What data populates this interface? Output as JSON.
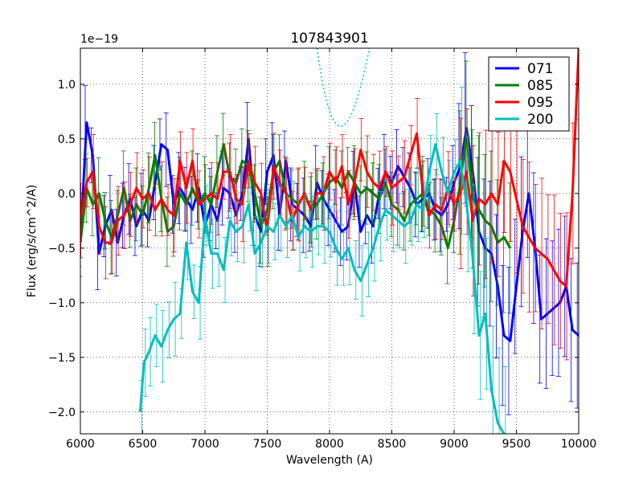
{
  "chart_data": {
    "type": "line",
    "title": "107843901",
    "xlabel": "Wavelength (A)",
    "ylabel": "Flux (erg/s/cm^2/A)",
    "y_offset_label": "1e−19",
    "xlim": [
      6000,
      10000
    ],
    "ylim": [
      -2.2,
      1.33
    ],
    "x_ticks": [
      6000,
      6500,
      7000,
      7500,
      8000,
      8500,
      9000,
      9500,
      10000
    ],
    "x_tick_labels": [
      "6000",
      "6500",
      "7000",
      "7500",
      "8000",
      "8500",
      "9000",
      "9500",
      "10000"
    ],
    "y_ticks": [
      -2.0,
      -1.5,
      -1.0,
      -0.5,
      0.0,
      0.5,
      1.0
    ],
    "y_tick_labels": [
      "−2.0",
      "−1.5",
      "−1.0",
      "−0.5",
      "0.0",
      "0.5",
      "1.0"
    ],
    "grid": true,
    "legend_position": "top-right",
    "series": [
      {
        "name": "071",
        "color": "#0000ff",
        "x": [
          6000,
          6050,
          6100,
          6150,
          6200,
          6250,
          6300,
          6350,
          6400,
          6450,
          6500,
          6550,
          6600,
          6650,
          6700,
          6750,
          6800,
          6850,
          6900,
          6950,
          7000,
          7050,
          7100,
          7150,
          7200,
          7250,
          7300,
          7350,
          7400,
          7450,
          7500,
          7550,
          7600,
          7650,
          7700,
          7750,
          7800,
          7850,
          7900,
          7950,
          8000,
          8050,
          8100,
          8150,
          8200,
          8250,
          8300,
          8350,
          8400,
          8450,
          8500,
          8550,
          8600,
          8650,
          8700,
          8750,
          8800,
          8850,
          8900,
          8950,
          9000,
          9050,
          9100,
          9150,
          9200,
          9250,
          9300,
          9350,
          9400,
          9450,
          9500,
          9550,
          9600,
          9650,
          9700,
          9750,
          9800,
          9850,
          9900,
          9950,
          10000
        ],
        "y": [
          -0.45,
          0.65,
          0.35,
          -0.55,
          -0.3,
          -0.15,
          -0.45,
          -0.2,
          -0.05,
          -0.3,
          -0.15,
          -0.25,
          0.1,
          0.45,
          0.4,
          -0.1,
          0.05,
          -0.05,
          -0.15,
          0.05,
          -0.3,
          -0.1,
          -0.25,
          0.05,
          0.0,
          -0.2,
          0.0,
          0.5,
          -0.2,
          -0.35,
          0.2,
          0.35,
          -0.2,
          0.3,
          -0.1,
          -0.15,
          -0.2,
          -0.3,
          0.1,
          -0.05,
          -0.15,
          -0.25,
          -0.35,
          -0.3,
          0.1,
          -0.35,
          -0.2,
          -0.3,
          0.0,
          0.2,
          0.1,
          0.25,
          0.15,
          0.05,
          -0.1,
          -0.05,
          0.0,
          -0.15,
          -0.2,
          -0.1,
          0.1,
          0.25,
          0.6,
          0.2,
          -0.35,
          -0.5,
          -0.55,
          -0.85,
          -1.3,
          -1.35,
          -0.85,
          -0.35,
          0.0,
          -0.5,
          -1.15,
          -1.1,
          -1.05,
          -1.0,
          -0.85,
          -1.25,
          -1.3
        ]
      },
      {
        "name": "085",
        "color": "#008000",
        "x": [
          6000,
          6050,
          6100,
          6150,
          6200,
          6250,
          6300,
          6350,
          6400,
          6450,
          6500,
          6550,
          6600,
          6650,
          6700,
          6750,
          6800,
          6850,
          6900,
          6950,
          7000,
          7050,
          7100,
          7150,
          7200,
          7250,
          7300,
          7350,
          7400,
          7450,
          7500,
          7550,
          7600,
          7650,
          7700,
          7750,
          7800,
          7850,
          7900,
          7950,
          8000,
          8050,
          8100,
          8150,
          8200,
          8250,
          8300,
          8350,
          8400,
          8450,
          8500,
          8550,
          8600,
          8650,
          8700,
          8750,
          8800,
          8850,
          8900,
          8950,
          9000,
          9050,
          9100,
          9150,
          9200,
          9250,
          9300,
          9350,
          9400,
          9450
        ],
        "y": [
          -0.45,
          0.05,
          -0.1,
          0.0,
          -0.25,
          -0.4,
          -0.2,
          0.05,
          -0.25,
          -0.1,
          -0.2,
          0.05,
          0.35,
          -0.05,
          -0.35,
          -0.3,
          0.0,
          -0.1,
          0.05,
          -0.1,
          0.0,
          -0.1,
          0.2,
          0.45,
          0.15,
          0.1,
          0.3,
          0.25,
          0.0,
          -0.3,
          -0.15,
          0.2,
          0.3,
          0.0,
          -0.05,
          -0.1,
          0.0,
          -0.15,
          -0.1,
          0.0,
          0.1,
          0.15,
          0.05,
          0.2,
          0.1,
          0.0,
          0.05,
          0.0,
          -0.05,
          0.1,
          -0.1,
          -0.15,
          -0.25,
          -0.1,
          -0.05,
          0.0,
          -0.15,
          -0.2,
          -0.3,
          -0.5,
          -0.25,
          0.1,
          0.55,
          -0.05,
          -0.15,
          -0.25,
          -0.3,
          -0.45,
          -0.4,
          -0.5
        ]
      },
      {
        "name": "095",
        "color": "#ff0000",
        "x": [
          6000,
          6050,
          6100,
          6150,
          6200,
          6250,
          6300,
          6350,
          6400,
          6450,
          6500,
          6550,
          6600,
          6650,
          6700,
          6750,
          6800,
          6850,
          6900,
          6950,
          7000,
          7050,
          7100,
          7150,
          7200,
          7250,
          7300,
          7350,
          7400,
          7450,
          7500,
          7550,
          7600,
          7650,
          7700,
          7750,
          7800,
          7850,
          7900,
          7950,
          8000,
          8050,
          8100,
          8150,
          8200,
          8250,
          8300,
          8350,
          8400,
          8450,
          8500,
          8550,
          8600,
          8650,
          8700,
          8750,
          8800,
          8850,
          8900,
          8950,
          9000,
          9050,
          9100,
          9150,
          9200,
          9250,
          9300,
          9350,
          9400,
          9450,
          9500,
          9550,
          9600,
          9650,
          9700,
          9750,
          9800,
          9850,
          9900,
          9950,
          10000
        ],
        "y": [
          -0.25,
          0.1,
          0.2,
          -0.3,
          -0.45,
          -0.45,
          -0.25,
          -0.2,
          -0.1,
          0.05,
          -0.05,
          0.0,
          -0.15,
          -0.05,
          -0.15,
          -0.2,
          0.3,
          0.05,
          0.3,
          -0.1,
          -0.05,
          0.0,
          -0.05,
          0.2,
          0.2,
          -0.05,
          -0.1,
          0.3,
          0.1,
          0.0,
          -0.35,
          0.25,
          0.1,
          0.0,
          -0.25,
          -0.1,
          0.0,
          -0.15,
          0.0,
          0.0,
          0.2,
          0.1,
          0.25,
          -0.1,
          0.1,
          0.4,
          0.2,
          0.1,
          0.05,
          0.2,
          0.05,
          0.1,
          0.15,
          0.35,
          0.55,
          0.0,
          -0.2,
          -0.1,
          -0.15,
          0.05,
          -0.1,
          0.0,
          0.2,
          -0.25,
          -0.05,
          -0.1,
          0.0,
          -0.1,
          0.3,
          0.2,
          -0.05,
          -0.3,
          -0.4,
          -0.5,
          -0.55,
          -0.6,
          -0.7,
          -0.8,
          -0.85,
          0.0,
          1.33
        ]
      },
      {
        "name": "200",
        "color": "#00bfbf",
        "x": [
          6480,
          6510,
          6550,
          6600,
          6650,
          6700,
          6750,
          6800,
          6850,
          6900,
          6950,
          7000,
          7050,
          7100,
          7150,
          7200,
          7250,
          7300,
          7350,
          7400,
          7450,
          7500,
          7550,
          7600,
          7650,
          7700,
          7750,
          7800,
          7850,
          7900,
          7950,
          8000,
          8050,
          8100,
          8150,
          8200,
          8250,
          8300,
          8350,
          8400,
          8450,
          8500,
          8550,
          8600,
          8650,
          8700,
          8750,
          8800,
          8850,
          8900,
          8950,
          9000,
          9050,
          9100,
          9150,
          9200,
          9250,
          9300,
          9350,
          9400
        ],
        "y": [
          -2.0,
          -1.55,
          -1.45,
          -1.3,
          -1.4,
          -1.25,
          -1.15,
          -1.1,
          -0.45,
          -0.9,
          -1.0,
          -0.2,
          -0.55,
          -0.55,
          -0.7,
          -0.25,
          -0.35,
          -0.3,
          -0.1,
          -0.55,
          -0.45,
          -0.3,
          -0.35,
          -0.2,
          -0.3,
          -0.2,
          -0.4,
          -0.3,
          -0.35,
          -0.3,
          -0.3,
          -0.35,
          -0.5,
          -0.6,
          -0.5,
          -0.7,
          -0.8,
          -0.65,
          -0.5,
          -0.3,
          -0.15,
          -0.2,
          -0.25,
          -0.3,
          -0.25,
          -0.1,
          -0.15,
          0.2,
          0.45,
          0.2,
          0.0,
          0.2,
          0.3,
          -0.1,
          -0.6,
          -1.3,
          -1.1,
          -1.8,
          -2.1,
          -2.2
        ]
      }
    ]
  }
}
